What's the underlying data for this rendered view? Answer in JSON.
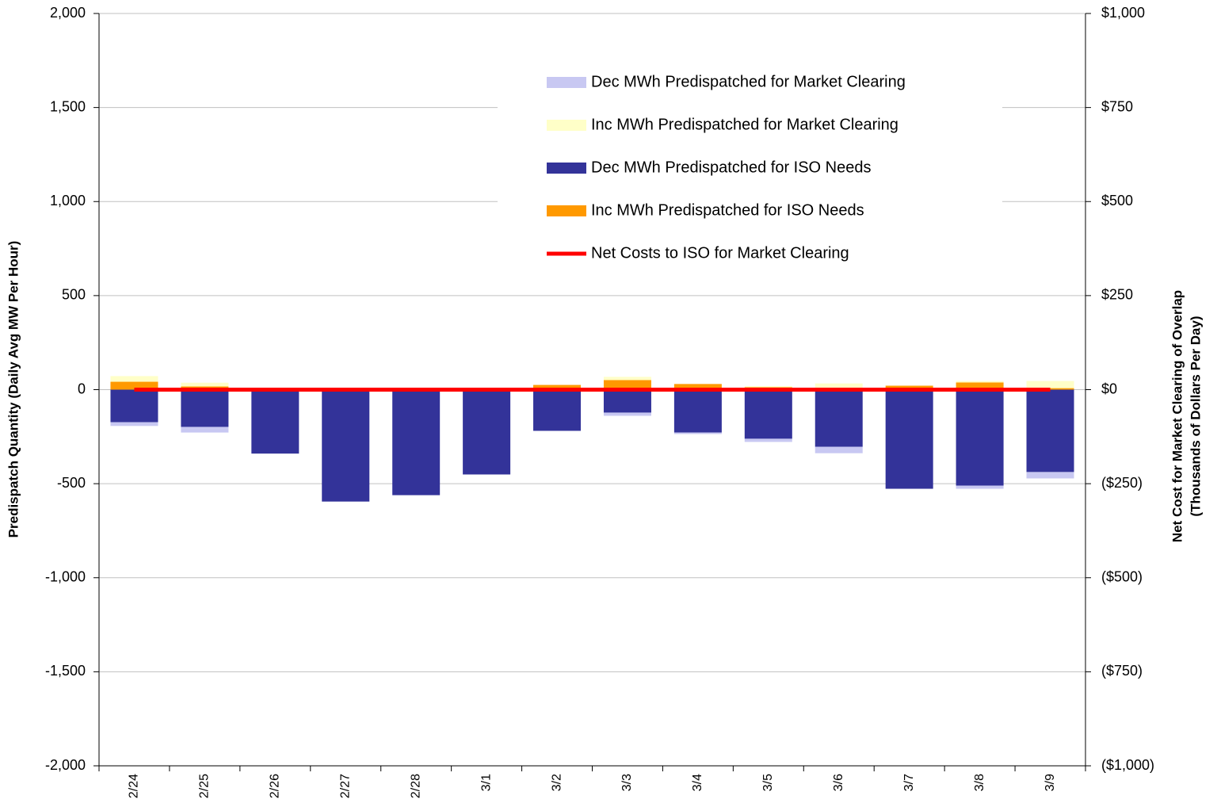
{
  "chart_data": {
    "type": "bar",
    "categories": [
      "2/24",
      "2/25",
      "2/26",
      "2/27",
      "2/28",
      "3/1",
      "3/2",
      "3/3",
      "3/4",
      "3/5",
      "3/6",
      "3/7",
      "3/8",
      "3/9"
    ],
    "ylabel": "Predispatch Quantity (Daily Avg MW Per Hour)",
    "y2label": [
      "Net Cost for Market Clearing of Overlap",
      "(Thousands of Dollars Per Day)"
    ],
    "ylim": [
      -2000,
      2000
    ],
    "yticks": [
      {
        "value": -2000,
        "label": "-2,000"
      },
      {
        "value": -1500,
        "label": "-1,500"
      },
      {
        "value": -1000,
        "label": "-1,000"
      },
      -500,
      0,
      500,
      {
        "value": 1000,
        "label": "1,000"
      },
      {
        "value": 1500,
        "label": "1,500"
      },
      {
        "value": 2000,
        "label": "2,000"
      }
    ],
    "y2lim": [
      -1000,
      1000
    ],
    "y2ticks": [
      {
        "value": -1000,
        "label": "($1,000)"
      },
      {
        "value": -750,
        "label": "($750)"
      },
      {
        "value": -500,
        "label": "($500)"
      },
      {
        "value": -250,
        "label": "($250)"
      },
      {
        "value": 0,
        "label": "$0"
      },
      {
        "value": 250,
        "label": "$250"
      },
      {
        "value": 500,
        "label": "$500"
      },
      {
        "value": 750,
        "label": "$750"
      },
      {
        "value": 1000,
        "label": "$1,000"
      }
    ],
    "grid": true,
    "series": [
      {
        "name": "Dec MWh Predispatched for Market Clearing",
        "color": "#c8c8f2",
        "values": [
          -20,
          -30,
          0,
          0,
          0,
          0,
          0,
          -17,
          -8,
          -17,
          -34,
          0,
          -17,
          -34
        ]
      },
      {
        "name": "Inc MWh Predispatched for Market Clearing",
        "color": "#ffffc8",
        "values": [
          30,
          20,
          0,
          0,
          0,
          0,
          0,
          17,
          0,
          5,
          25,
          0,
          8,
          38
        ]
      },
      {
        "name": "Dec MWh Predispatched for ISO Needs",
        "color": "#333399",
        "values": [
          -173,
          -198,
          -340,
          -595,
          -561,
          -451,
          -219,
          -122,
          -228,
          -261,
          -304,
          -527,
          -510,
          -438
        ]
      },
      {
        "name": "Inc MWh Predispatched for ISO Needs",
        "color": "#ff9900",
        "values": [
          42,
          17,
          0,
          0,
          0,
          0,
          25,
          51,
          30,
          13,
          8,
          21,
          38,
          8
        ]
      },
      {
        "name": "Net Costs to ISO for Market Clearing",
        "color": "#ff0000",
        "type": "line",
        "axis": "y2",
        "values": [
          0,
          0,
          0,
          0,
          0,
          0,
          0,
          0,
          0,
          0,
          0,
          0,
          0,
          0
        ]
      }
    ]
  }
}
